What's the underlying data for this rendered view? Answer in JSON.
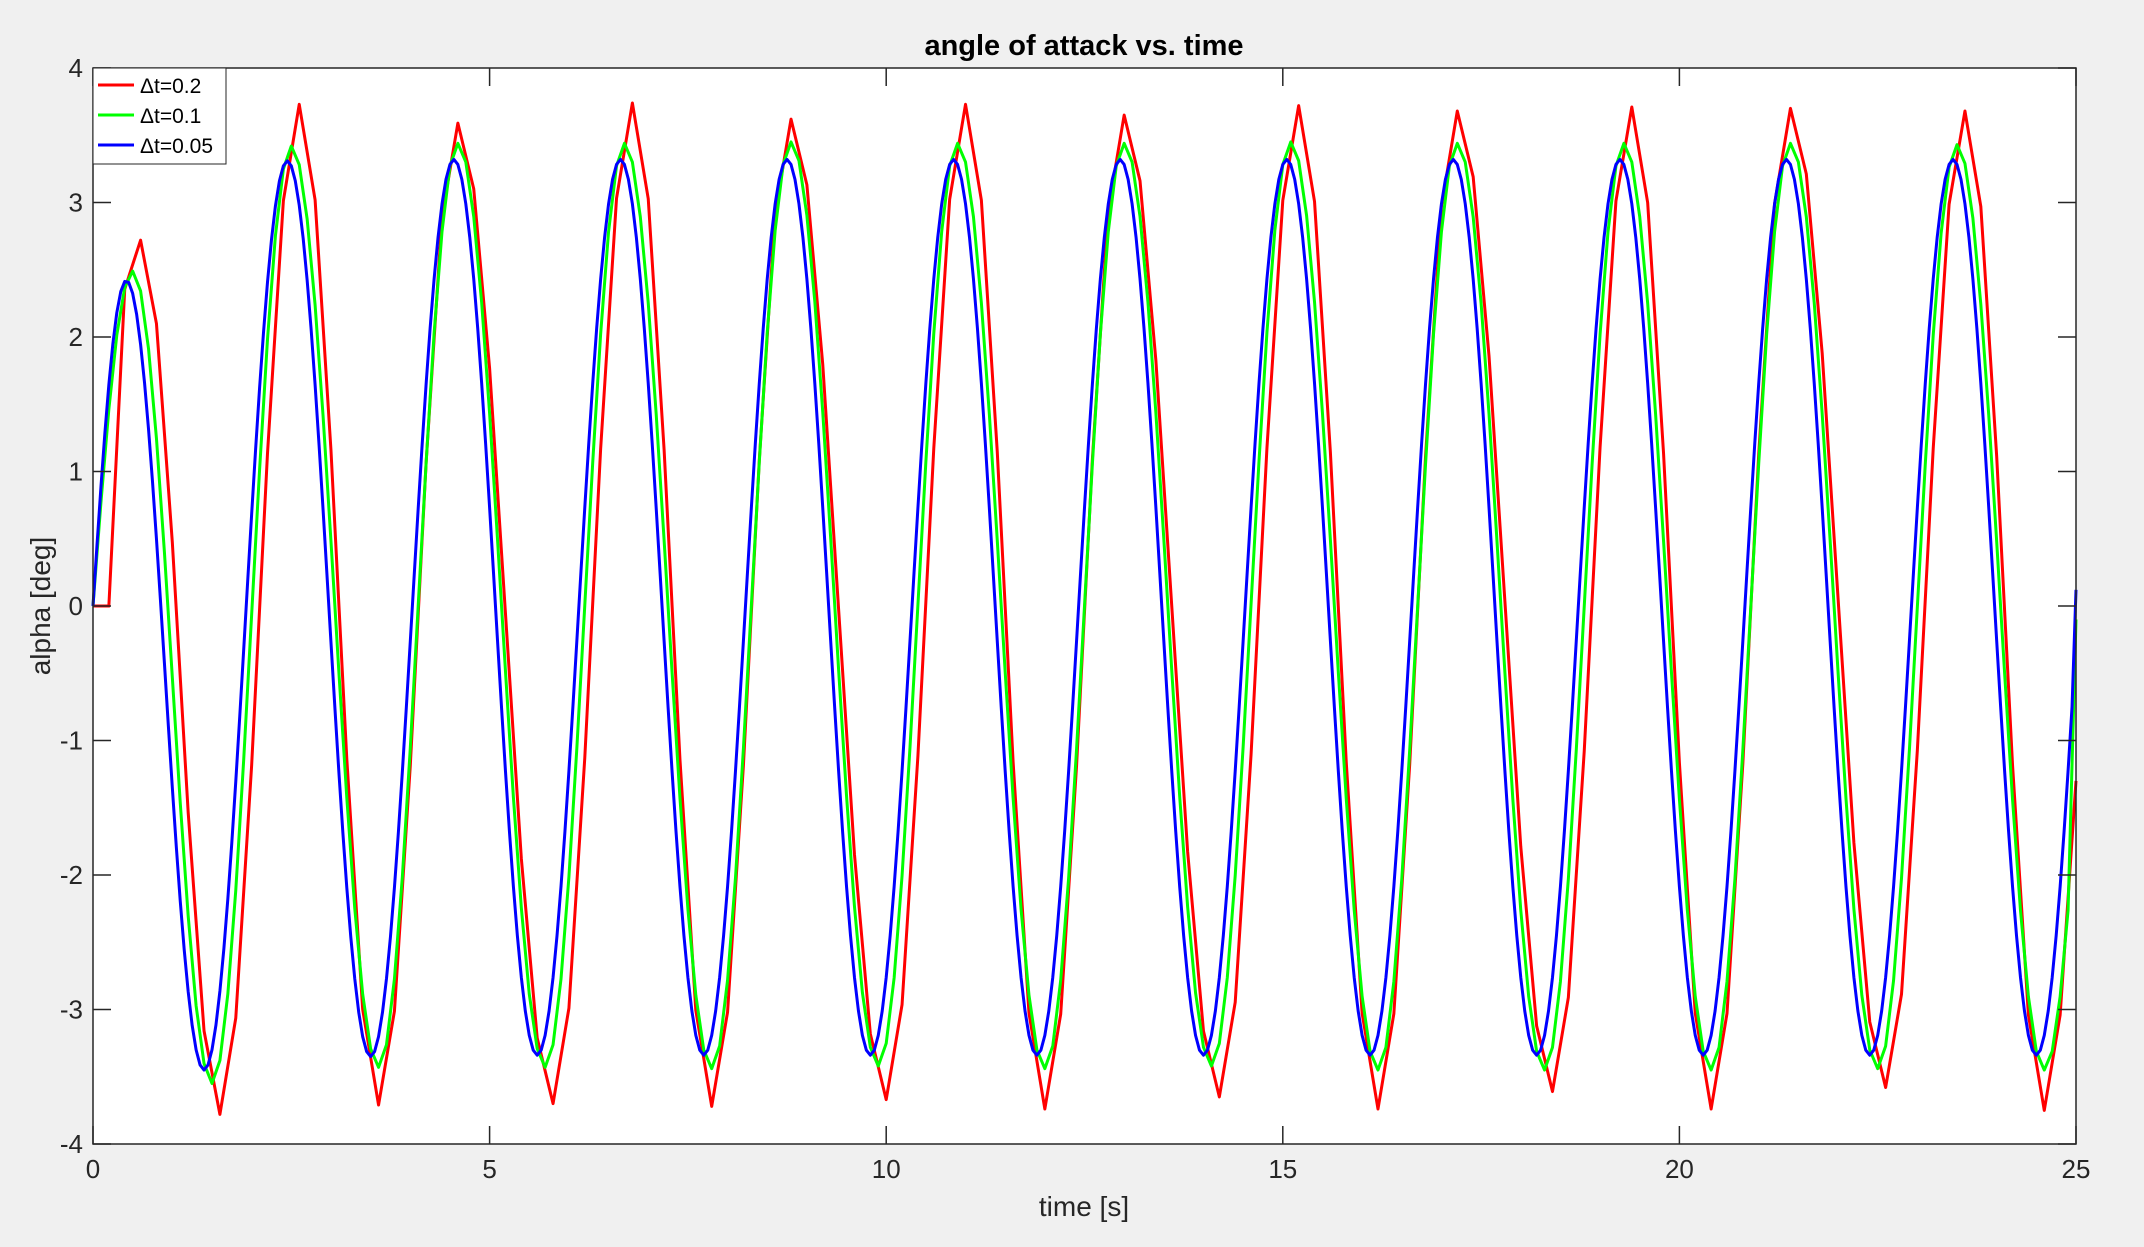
{
  "chart_data": {
    "type": "line",
    "title": "angle of attack vs. time",
    "xlabel": "time [s]",
    "ylabel": "alpha [deg]",
    "xlim": [
      0,
      25
    ],
    "ylim": [
      -4,
      4
    ],
    "xticks": [
      0,
      5,
      10,
      15,
      20,
      25
    ],
    "yticks": [
      -4,
      -3,
      -2,
      -1,
      0,
      1,
      2,
      3,
      4
    ],
    "xtick_labels": [
      "0",
      "5",
      "10",
      "15",
      "20",
      "25"
    ],
    "ytick_labels": [
      "-4",
      "-3",
      "-2",
      "-1",
      "0",
      "1",
      "2",
      "3",
      "4"
    ],
    "grid": false,
    "legend_position": "top-left",
    "series": [
      {
        "name": "Δt=0.2",
        "color": "#ff0000",
        "step": 0.2,
        "peaks": [
          [
            0.6,
            2.72
          ],
          [
            2.6,
            3.73
          ],
          [
            4.6,
            3.59
          ],
          [
            6.8,
            3.74
          ],
          [
            8.8,
            3.62
          ],
          [
            11.0,
            3.73
          ],
          [
            13.0,
            3.65
          ],
          [
            15.2,
            3.72
          ],
          [
            17.2,
            3.68
          ],
          [
            19.4,
            3.71
          ],
          [
            21.4,
            3.7
          ],
          [
            23.6,
            3.68
          ]
        ],
        "troughs": [
          [
            1.6,
            -3.78
          ],
          [
            3.6,
            -3.71
          ],
          [
            5.8,
            -3.7
          ],
          [
            7.8,
            -3.72
          ],
          [
            10.0,
            -3.67
          ],
          [
            12.0,
            -3.74
          ],
          [
            14.2,
            -3.65
          ],
          [
            16.2,
            -3.74
          ],
          [
            18.4,
            -3.61
          ],
          [
            20.4,
            -3.74
          ],
          [
            22.6,
            -3.58
          ],
          [
            24.6,
            -3.75
          ]
        ],
        "end_value": -1.3
      },
      {
        "name": "Δt=0.1",
        "color": "#00ff00",
        "step": 0.1,
        "peaks": [
          [
            0.5,
            2.49
          ],
          [
            2.5,
            3.42
          ],
          [
            4.6,
            3.44
          ],
          [
            6.7,
            3.44
          ],
          [
            8.8,
            3.45
          ],
          [
            10.9,
            3.44
          ],
          [
            13.0,
            3.44
          ],
          [
            15.1,
            3.45
          ],
          [
            17.2,
            3.44
          ],
          [
            19.3,
            3.44
          ],
          [
            21.4,
            3.44
          ],
          [
            23.5,
            3.43
          ]
        ],
        "troughs": [
          [
            1.5,
            -3.55
          ],
          [
            3.6,
            -3.43
          ],
          [
            5.7,
            -3.43
          ],
          [
            7.8,
            -3.44
          ],
          [
            9.9,
            -3.42
          ],
          [
            12.0,
            -3.44
          ],
          [
            14.1,
            -3.42
          ],
          [
            16.2,
            -3.45
          ],
          [
            18.3,
            -3.45
          ],
          [
            20.4,
            -3.45
          ],
          [
            22.5,
            -3.44
          ],
          [
            24.6,
            -3.45
          ]
        ],
        "end_value": -0.1
      },
      {
        "name": "Δt=0.05",
        "color": "#0000ff",
        "step": 0.05,
        "peaks": [
          [
            0.42,
            2.42
          ],
          [
            2.45,
            3.31
          ],
          [
            4.55,
            3.32
          ],
          [
            6.65,
            3.32
          ],
          [
            8.75,
            3.32
          ],
          [
            10.85,
            3.32
          ],
          [
            12.95,
            3.32
          ],
          [
            15.05,
            3.32
          ],
          [
            17.15,
            3.32
          ],
          [
            19.25,
            3.32
          ],
          [
            21.35,
            3.32
          ],
          [
            23.45,
            3.32
          ]
        ],
        "troughs": [
          [
            1.4,
            -3.45
          ],
          [
            3.5,
            -3.35
          ],
          [
            5.6,
            -3.34
          ],
          [
            7.7,
            -3.34
          ],
          [
            9.8,
            -3.34
          ],
          [
            11.9,
            -3.34
          ],
          [
            14.0,
            -3.34
          ],
          [
            16.1,
            -3.34
          ],
          [
            18.2,
            -3.34
          ],
          [
            20.3,
            -3.34
          ],
          [
            22.4,
            -3.34
          ],
          [
            24.5,
            -3.34
          ]
        ],
        "end_value": 0.12
      }
    ]
  }
}
